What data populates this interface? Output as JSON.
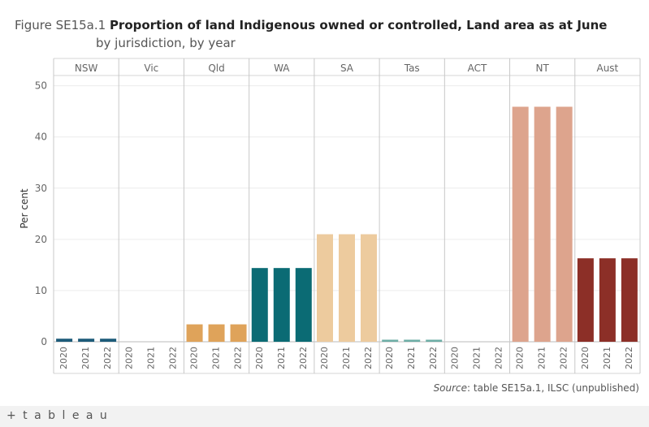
{
  "title": {
    "prefix": "Figure SE15a.1",
    "main": "Proportion of land Indigenous owned or controlled, Land area as at June",
    "line2": "by jurisdiction, by year"
  },
  "source": {
    "label": "Source",
    "text": ": table SE15a.1, ILSC (unpublished)"
  },
  "footer": {
    "logo": "+ t a b l e a u"
  },
  "chart_data": {
    "type": "bar",
    "ylabel": "Per cent",
    "ylim": [
      0,
      52
    ],
    "yticks": [
      0,
      10,
      20,
      30,
      40,
      50
    ],
    "years": [
      "2020",
      "2021",
      "2022"
    ],
    "panels": [
      {
        "name": "NSW",
        "values": [
          0.6,
          0.6,
          0.6
        ],
        "color": "#1d5b79"
      },
      {
        "name": "Vic",
        "values": [
          0,
          0,
          0
        ],
        "color": "#1d5b79"
      },
      {
        "name": "Qld",
        "values": [
          3.4,
          3.4,
          3.4
        ],
        "color": "#dfa35a"
      },
      {
        "name": "WA",
        "values": [
          14.4,
          14.4,
          14.4
        ],
        "color": "#0b6b74"
      },
      {
        "name": "SA",
        "values": [
          21.0,
          21.0,
          21.0
        ],
        "color": "#edcb9e"
      },
      {
        "name": "Tas",
        "values": [
          0.4,
          0.4,
          0.4
        ],
        "color": "#6dada5"
      },
      {
        "name": "ACT",
        "values": [
          0,
          0,
          0
        ],
        "color": "#6dada5"
      },
      {
        "name": "NT",
        "values": [
          45.9,
          45.9,
          45.9
        ],
        "color": "#dda48d"
      },
      {
        "name": "Aust",
        "values": [
          16.3,
          16.3,
          16.3
        ],
        "color": "#8c2f27"
      }
    ]
  }
}
